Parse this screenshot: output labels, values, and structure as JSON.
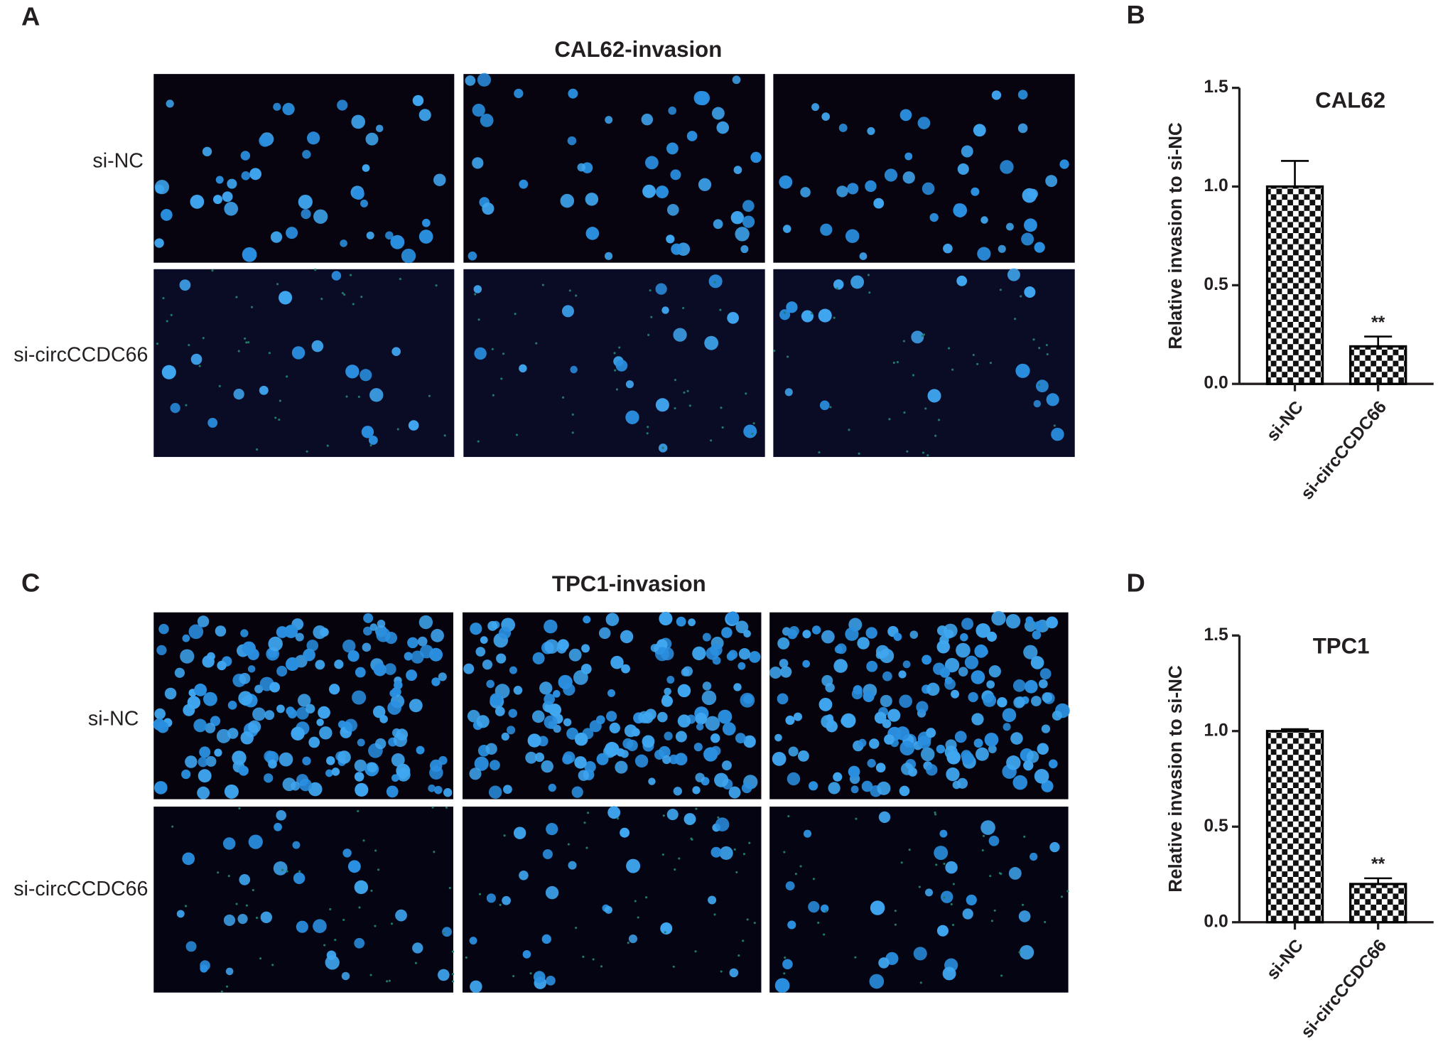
{
  "figure": {
    "panel_labels": [
      "A",
      "B",
      "C",
      "D"
    ],
    "image_panels": [
      {
        "title": "CAL62-invasion",
        "rows": [
          "si-NC",
          "si-circCCDC66"
        ]
      },
      {
        "title": "TPC1-invasion",
        "rows": [
          "si-NC",
          "si-circCCDC66"
        ]
      }
    ]
  },
  "chart_data": [
    {
      "type": "bar",
      "title": "CAL62",
      "y_label": "Relative invasion to si-NC",
      "categories": [
        "si-NC",
        "si-circCCDC66"
      ],
      "values": [
        1.0,
        0.19
      ],
      "errors": [
        0.13,
        0.05
      ],
      "significance_labels": [
        null,
        "**"
      ],
      "color": "#000000",
      "ylim": [
        0,
        1.5
      ],
      "yticks": [
        {
          "value": 0,
          "label": "0.0"
        },
        0.5,
        {
          "value": 1,
          "label": "1.0"
        },
        1.5
      ]
    },
    {
      "type": "bar",
      "title": "TPC1",
      "y_label": "Relative invasion to si-NC",
      "categories": [
        "si-NC",
        "si-circCCDC66"
      ],
      "values": [
        1.0,
        0.2
      ],
      "errors": [
        0.01,
        0.03
      ],
      "significance_labels": [
        null,
        "**"
      ],
      "color": "#000000",
      "ylim": [
        0,
        1.5
      ],
      "yticks": [
        {
          "value": 0,
          "label": "0.0"
        },
        0.5,
        {
          "value": 1,
          "label": "1.0"
        },
        1.5
      ]
    }
  ]
}
